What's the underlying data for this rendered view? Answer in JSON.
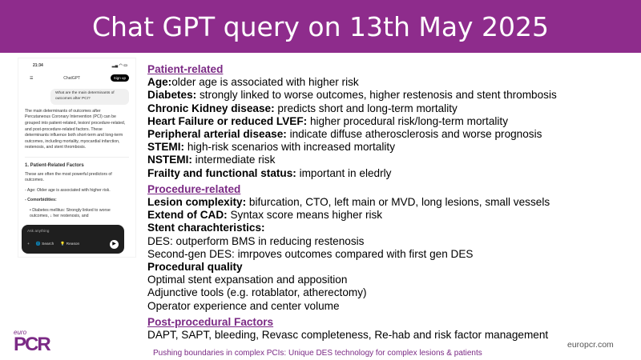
{
  "header": {
    "title": "Chat GPT query on 13th May 2025"
  },
  "phone": {
    "time": "21:34",
    "app_title": "ChatGPT",
    "signup": "Sign up",
    "question": "What are the main determinants of outcomes after PCI?",
    "answer": "The main determinants of outcomes after Percutaneous Coronary Intervention (PCI) can be grouped into patient-related, lesion/ procedure-related, and post-procedure-related factors. These determinants influence both short-term and long-term outcomes, including mortality, myocardial infarction, restenosis, and stent thrombosis.",
    "section": "1. Patient-Related Factors",
    "section_intro": "These are often the most powerful predictors of outcomes.",
    "bullet_age": "- Age: Older age is associated with higher risk.",
    "bullet_comorb": "- Comorbidities:",
    "bullet_diab": "• Diabetes mellitus: Strongly linked to worse outcomes, ↓ her restenosis, and",
    "composer_placeholder": "Ask anything",
    "search": "Search",
    "reason": "Reason",
    "plus": "+",
    "send": "▶"
  },
  "content": {
    "sections": [
      {
        "title": "Patient-related",
        "items": [
          {
            "b": "Age:",
            "t": "older age is associated with higher risk"
          },
          {
            "b": "Diabetes:",
            "t": " strongly linked to worse outcomes, higher restenosis and stent thrombosis"
          },
          {
            "b": "Chronic Kidney disease:",
            "t": " predicts short and long-term mortality"
          },
          {
            "b": "Heart Failure or reduced LVEF:",
            "t": " higher procedural risk/long-term mortality"
          },
          {
            "b": "Peripheral arterial disease:",
            "t": " indicate diffuse atherosclerosis and worse prognosis"
          },
          {
            "b": "STEMI:",
            "t": " high-risk scenarios with increased mortality"
          },
          {
            "b": "NSTEMI:",
            "t": " intermediate risk"
          },
          {
            "b": "Frailty and functional status:",
            "t": " important in eledrly"
          }
        ]
      },
      {
        "title": "Procedure-related",
        "items": [
          {
            "b": "Lesion complexity:",
            "t": " bifurcation, CTO, left main or MVD, long lesions, small vessels"
          },
          {
            "b": "Extend of CAD:",
            "t": " Syntax score means higher risk"
          },
          {
            "b": "Stent charachteristics:",
            "t": ""
          },
          {
            "b": "",
            "t": "DES: outperform BMS in reducing restenosis"
          },
          {
            "b": "",
            "t": "Second-gen DES: imrpoves outcomes compared with first gen DES"
          },
          {
            "b": "Procedural quality",
            "t": ""
          },
          {
            "b": "",
            "t": "Optimal stent expansation and apposition"
          },
          {
            "b": "",
            "t": "Adjunctive tools (e.g. rotablator, atherectomy)"
          },
          {
            "b": "",
            "t": "Operator experience and center volume"
          }
        ]
      },
      {
        "title": "Post-procedural Factors",
        "items": [
          {
            "b": "",
            "t": "DAPT, SAPT, bleeding, Revasc completeness, Re-hab and risk factor management"
          }
        ]
      }
    ]
  },
  "footer": {
    "logo_small": "euro",
    "logo_big": "PCR",
    "tagline": "Pushing boundaries in complex PCIs: Unique DES technology for complex lesions & patients",
    "site": "europcr.com"
  },
  "colors": {
    "brand": "#8e2c8c"
  }
}
